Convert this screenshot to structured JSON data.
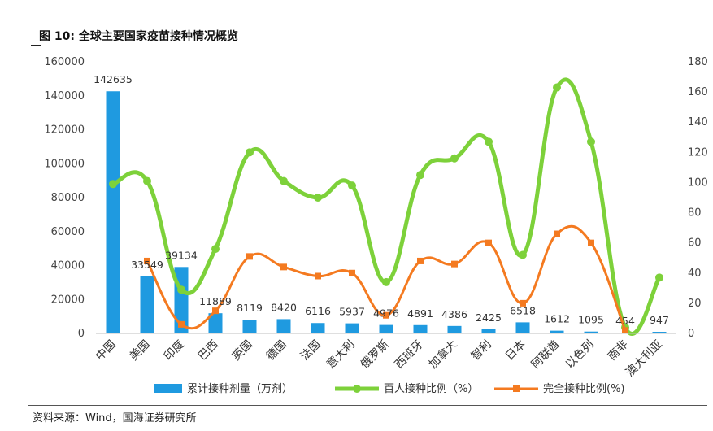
{
  "header": {
    "title": "图 10:  全球主要国家疫苗接种情况概览"
  },
  "footer": {
    "source": "资料来源：Wind，国海证券研究所"
  },
  "chart_data": {
    "type": "bar",
    "categories": [
      "中国",
      "美国",
      "印度",
      "巴西",
      "英国",
      "德国",
      "法国",
      "意大利",
      "俄罗斯",
      "西班牙",
      "加拿大",
      "智利",
      "日本",
      "阿联酋",
      "以色列",
      "南非",
      "澳大利亚"
    ],
    "ylim": [
      0,
      160000
    ],
    "y2lim": [
      0,
      180
    ],
    "yticks": [
      0,
      20000,
      40000,
      60000,
      80000,
      100000,
      120000,
      140000,
      160000
    ],
    "y2ticks": [
      0,
      20,
      40,
      60,
      80,
      100,
      120,
      140,
      160,
      180
    ],
    "series": [
      {
        "name": "累计接种剂量（万剂）",
        "type": "bar",
        "axis": "left",
        "color": "#1f9ae0",
        "values": [
          142635,
          33549,
          39134,
          11889,
          8119,
          8420,
          6116,
          5937,
          4976,
          4891,
          4386,
          2425,
          6518,
          1612,
          1095,
          454,
          947
        ],
        "labels": [
          "142635",
          "33549",
          "39134",
          "11889",
          "8119",
          "8420",
          "6116",
          "5937",
          "4976",
          "4891",
          "4386",
          "2425",
          "6518",
          "1612",
          "1095",
          "454",
          "947"
        ]
      },
      {
        "name": "百人接种比例（%）",
        "type": "line",
        "axis": "right",
        "color": "#7dd13a",
        "values": [
          99,
          101,
          29,
          56,
          120,
          101,
          90,
          98,
          34,
          105,
          116,
          127,
          52,
          163,
          127,
          4,
          37
        ]
      },
      {
        "name": "完全接种比例(%)",
        "type": "line",
        "axis": "right",
        "color": "#f47a20",
        "values": [
          null,
          48,
          6,
          15,
          51,
          44,
          38,
          40,
          12,
          48,
          46,
          60,
          20,
          66,
          60,
          2,
          null
        ]
      }
    ]
  }
}
